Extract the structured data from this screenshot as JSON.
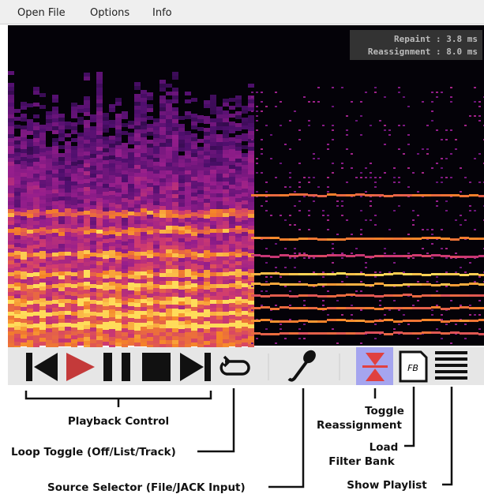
{
  "menu": [
    "Open File",
    "Options",
    "Info"
  ],
  "stats": [
    "Repaint : 3.8 ms",
    "Reassignment : 8.0 ms"
  ],
  "annotations": {
    "playback": [
      "Playback Control"
    ],
    "loop": [
      "Loop Toggle (Off/List/Track)"
    ],
    "source": [
      "Source Selector (File/JACK Input)"
    ],
    "reassign": [
      "Toggle",
      "Reassignment"
    ],
    "filterbank": [
      "Load",
      "Filter Bank"
    ],
    "playlist": [
      "Show Playlist"
    ]
  }
}
